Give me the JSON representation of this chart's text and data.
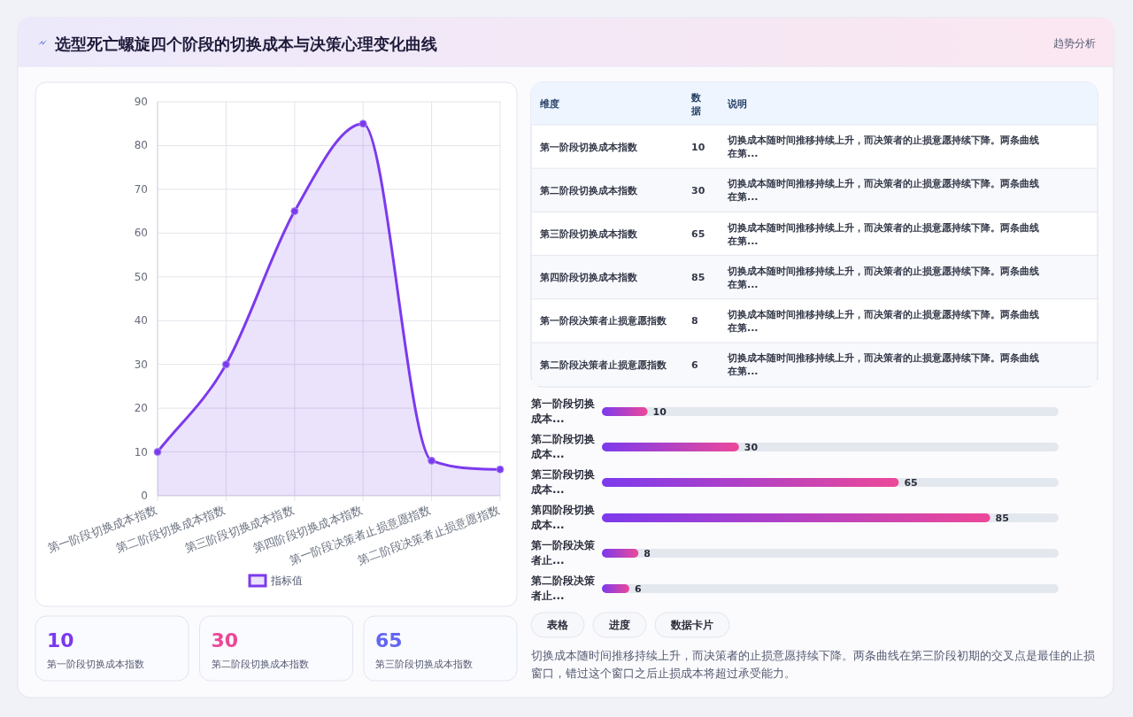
{
  "chart_data": [
    {
      "type": "area",
      "title": "选型死亡螺旋四个阶段的切换成本与决策心理变化曲线",
      "annotations": [
        "趋势分析"
      ],
      "categories": [
        "第一阶段切换成本指数",
        "第二阶段切换成本指数",
        "第三阶段切换成本指数",
        "第四阶段切换成本指数",
        "第一阶段决策者止损意愿指数",
        "第二阶段决策者止损意愿指数"
      ],
      "series": [
        {
          "name": "指标值",
          "color": "#7c3aed",
          "values": [
            10,
            30,
            65,
            85,
            8,
            6
          ]
        }
      ],
      "ylim": [
        0,
        90
      ],
      "yticks": [
        0,
        10,
        20,
        30,
        40,
        50,
        60,
        70,
        80,
        90
      ],
      "grid": true,
      "legend": "bottom",
      "marker": "circle"
    },
    {
      "type": "other",
      "annotations": [
        "维度",
        "数据",
        "说明",
        "第一阶段切换成本指数",
        "10",
        "切换成本随时间推移持续上升，而决策者的止损意愿持续下降。两条曲线在第...",
        "第二阶段切换成本指数",
        "30",
        "切换成本随时间推移持续上升，而决策者的止损意愿持续下降。两条曲线在第...",
        "第三阶段切换成本指数",
        "65",
        "切换成本随时间推移持续上升，而决策者的止损意愿持续下降。两条曲线在第...",
        "第四阶段切换成本指数",
        "85",
        "切换成本随时间推移持续上升，而决策者的止损意愿持续下降。两条曲线在第...",
        "第一阶段决策者止损意愿指数",
        "8",
        "切换成本随时间推移持续上升，而决策者的止损意愿持续下降。两条曲线在第...",
        "第二阶段决策者止损意愿指数",
        "6",
        "切换成本随时间推移持续上升，而决策者的止损意愿持续下降。两条曲线在第..."
      ]
    },
    {
      "type": "bar",
      "orientation": "horizontal",
      "categories": [
        "第一阶段切换成本...",
        "第二阶段切换成本...",
        "第三阶段切换成本...",
        "第四阶段切换成本...",
        "第一阶段决策者止...",
        "第二阶段决策者止..."
      ],
      "series": [
        {
          "color": "#7c3aed",
          "values": [
            10,
            30,
            65,
            85,
            8,
            6
          ]
        }
      ],
      "data_labels": true
    },
    {
      "type": "other",
      "annotations": [
        "表格",
        "进度",
        "数据卡片",
        "切换成本随时间推移持续上升，而决策者的止损意愿持续下降。两条曲线在第三阶段初期的交叉点是最佳的止损窗口，错过这个窗口之后止损成本将超过承受能力。"
      ]
    },
    {
      "type": "other",
      "colors": [
        "#7c3aed",
        "#ec4899",
        "#6366f1"
      ],
      "annotations": [
        "10",
        "第一阶段切换成本指数",
        "30",
        "第二阶段切换成本指数",
        "65",
        "第三阶段切换成本指数"
      ]
    }
  ]
}
